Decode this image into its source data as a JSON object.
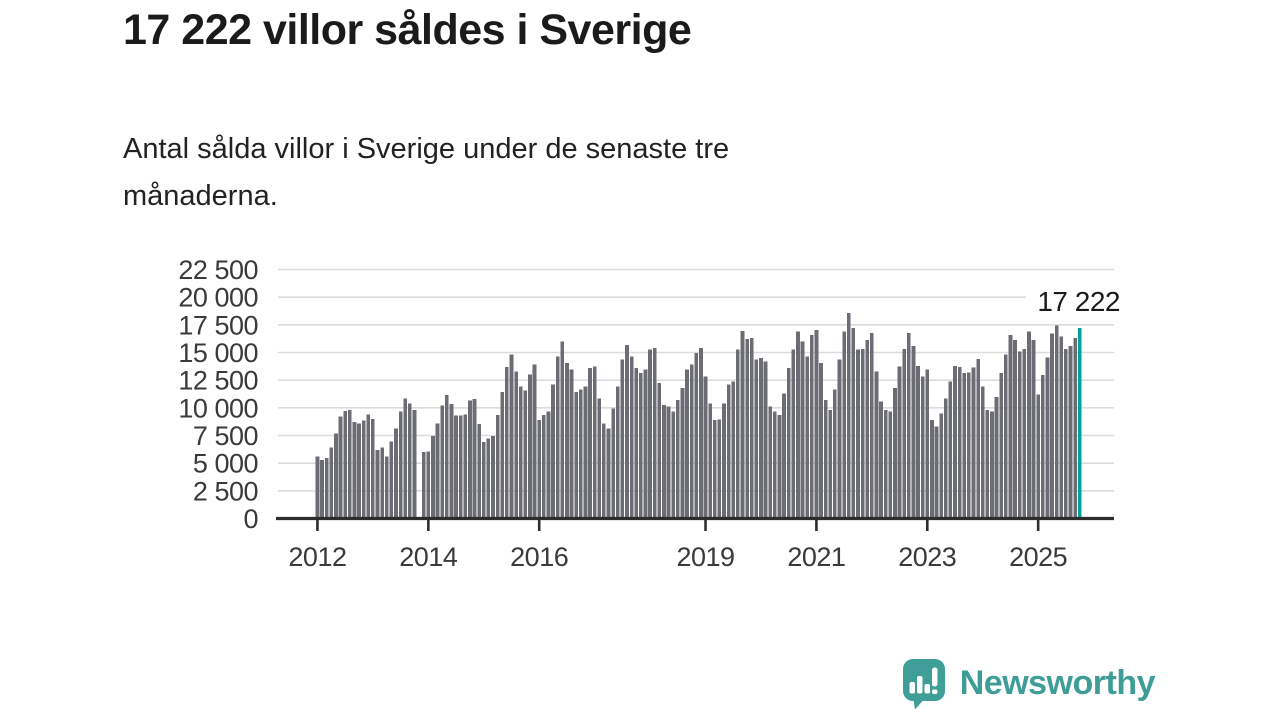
{
  "header": {
    "title": "17 222 villor såldes i Sverige",
    "subtitle": "Antal sålda villor i Sverige under de senaste tre\nmånaderna."
  },
  "chart_data": {
    "type": "bar",
    "description": "Antal sålda villor i Sverige, rullande tre månader, månadsvis",
    "x_start": "2012-01",
    "x_end": "2025-10",
    "frequency": "monthly",
    "ylim": [
      0,
      22500
    ],
    "grid": true,
    "values": [
      5600,
      5300,
      5450,
      6400,
      7700,
      9200,
      9700,
      9800,
      8700,
      8600,
      8850,
      9400,
      9000,
      6200,
      6400,
      5600,
      6950,
      8150,
      9650,
      10850,
      10400,
      9800,
      null,
      6000,
      6050,
      7450,
      8600,
      10200,
      11150,
      10350,
      9300,
      9300,
      9400,
      10650,
      10800,
      8550,
      6900,
      7250,
      7450,
      9350,
      11450,
      13700,
      14800,
      13300,
      11950,
      11550,
      13000,
      13900,
      8900,
      9350,
      9650,
      12100,
      14650,
      16000,
      14050,
      13450,
      11450,
      11650,
      11950,
      13600,
      13750,
      10850,
      8600,
      8150,
      9950,
      11950,
      14350,
      15700,
      14650,
      13600,
      13150,
      13450,
      15250,
      15400,
      12250,
      10250,
      10100,
      9650,
      10700,
      11800,
      13450,
      13900,
      14950,
      15400,
      12850,
      10400,
      8900,
      8950,
      10400,
      12100,
      12400,
      15250,
      16950,
      16200,
      16300,
      14350,
      14500,
      14200,
      10100,
      9650,
      9350,
      11300,
      13600,
      15250,
      16900,
      16000,
      14650,
      16600,
      17050,
      14050,
      10700,
      9800,
      11650,
      14350,
      16900,
      18550,
      17200,
      15250,
      15300,
      16150,
      16750,
      13300,
      10550,
      9800,
      9650,
      11800,
      13750,
      15300,
      16750,
      15600,
      13800,
      12850,
      13450,
      8900,
      8300,
      9500,
      10850,
      12400,
      13800,
      13700,
      13150,
      13200,
      13650,
      14400,
      11950,
      9800,
      9650,
      11000,
      13150,
      14800,
      16600,
      16150,
      15100,
      15300,
      16900,
      16150,
      11200,
      12950,
      14550,
      16700,
      17450,
      16450,
      15300,
      15600,
      16300,
      17222
    ],
    "yticks": [
      {
        "value": 22500,
        "label": "22 500"
      },
      {
        "value": 20000,
        "label": "20 000"
      },
      {
        "value": 17500,
        "label": "17 500"
      },
      {
        "value": 15000,
        "label": "15 000"
      },
      {
        "value": 12500,
        "label": "12 500"
      },
      {
        "value": 10000,
        "label": "10 000"
      },
      {
        "value": 7500,
        "label": "7 500"
      },
      {
        "value": 5000,
        "label": "5 000"
      },
      {
        "value": 2500,
        "label": "2 500"
      },
      {
        "value": 0,
        "label": "0"
      }
    ],
    "xticks": [
      {
        "year": 2012,
        "label": "2012"
      },
      {
        "year": 2014,
        "label": "2014"
      },
      {
        "year": 2016,
        "label": "2016"
      },
      {
        "year": 2019,
        "label": "2019"
      },
      {
        "year": 2021,
        "label": "2021"
      },
      {
        "year": 2023,
        "label": "2023"
      },
      {
        "year": 2025,
        "label": "2025"
      }
    ],
    "annotation": {
      "label": "17 222",
      "value": 17222,
      "index": 165
    },
    "legend": null,
    "colors": {
      "bar": "#6c6c74",
      "highlight": "#00a29e",
      "grid": "#dcdcdc",
      "axis": "#2d2d2d",
      "tick_text": "#3a3a3a",
      "annotation_text": "#1a1a1a"
    }
  },
  "footer": {
    "brand": "Newsworthy",
    "brand_color": "#3e9d97"
  }
}
